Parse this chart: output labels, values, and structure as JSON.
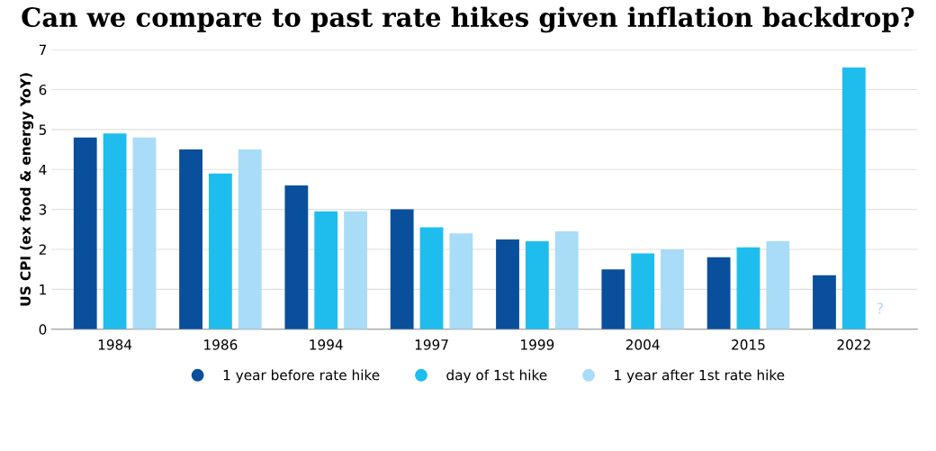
{
  "chart_data": {
    "type": "bar",
    "title": "Can we compare to past rate hikes given inflation backdrop?",
    "ylabel": "US CPI (ex food & energy YoY)",
    "categories": [
      "1984",
      "1986",
      "1994",
      "1997",
      "1999",
      "2004",
      "2015",
      "2022"
    ],
    "series": [
      {
        "name": "1 year before rate hike",
        "color": "#0a4f9c",
        "values": [
          4.8,
          4.5,
          3.6,
          3.0,
          2.25,
          1.5,
          1.8,
          1.35
        ]
      },
      {
        "name": "day of 1st hike",
        "color": "#1ebdee",
        "values": [
          4.9,
          3.9,
          2.95,
          2.55,
          2.2,
          1.9,
          2.05,
          6.55
        ]
      },
      {
        "name": "1 year after 1st rate hike",
        "color": "#a8dcf7",
        "values": [
          4.8,
          4.5,
          2.95,
          2.4,
          2.45,
          2.0,
          2.2,
          null
        ]
      }
    ],
    "annotations": [
      "?"
    ],
    "ylim": [
      0,
      7
    ],
    "yticks": [
      0,
      1,
      2,
      3,
      4,
      5,
      6,
      7
    ],
    "grid": "y",
    "legend": "bottom"
  }
}
